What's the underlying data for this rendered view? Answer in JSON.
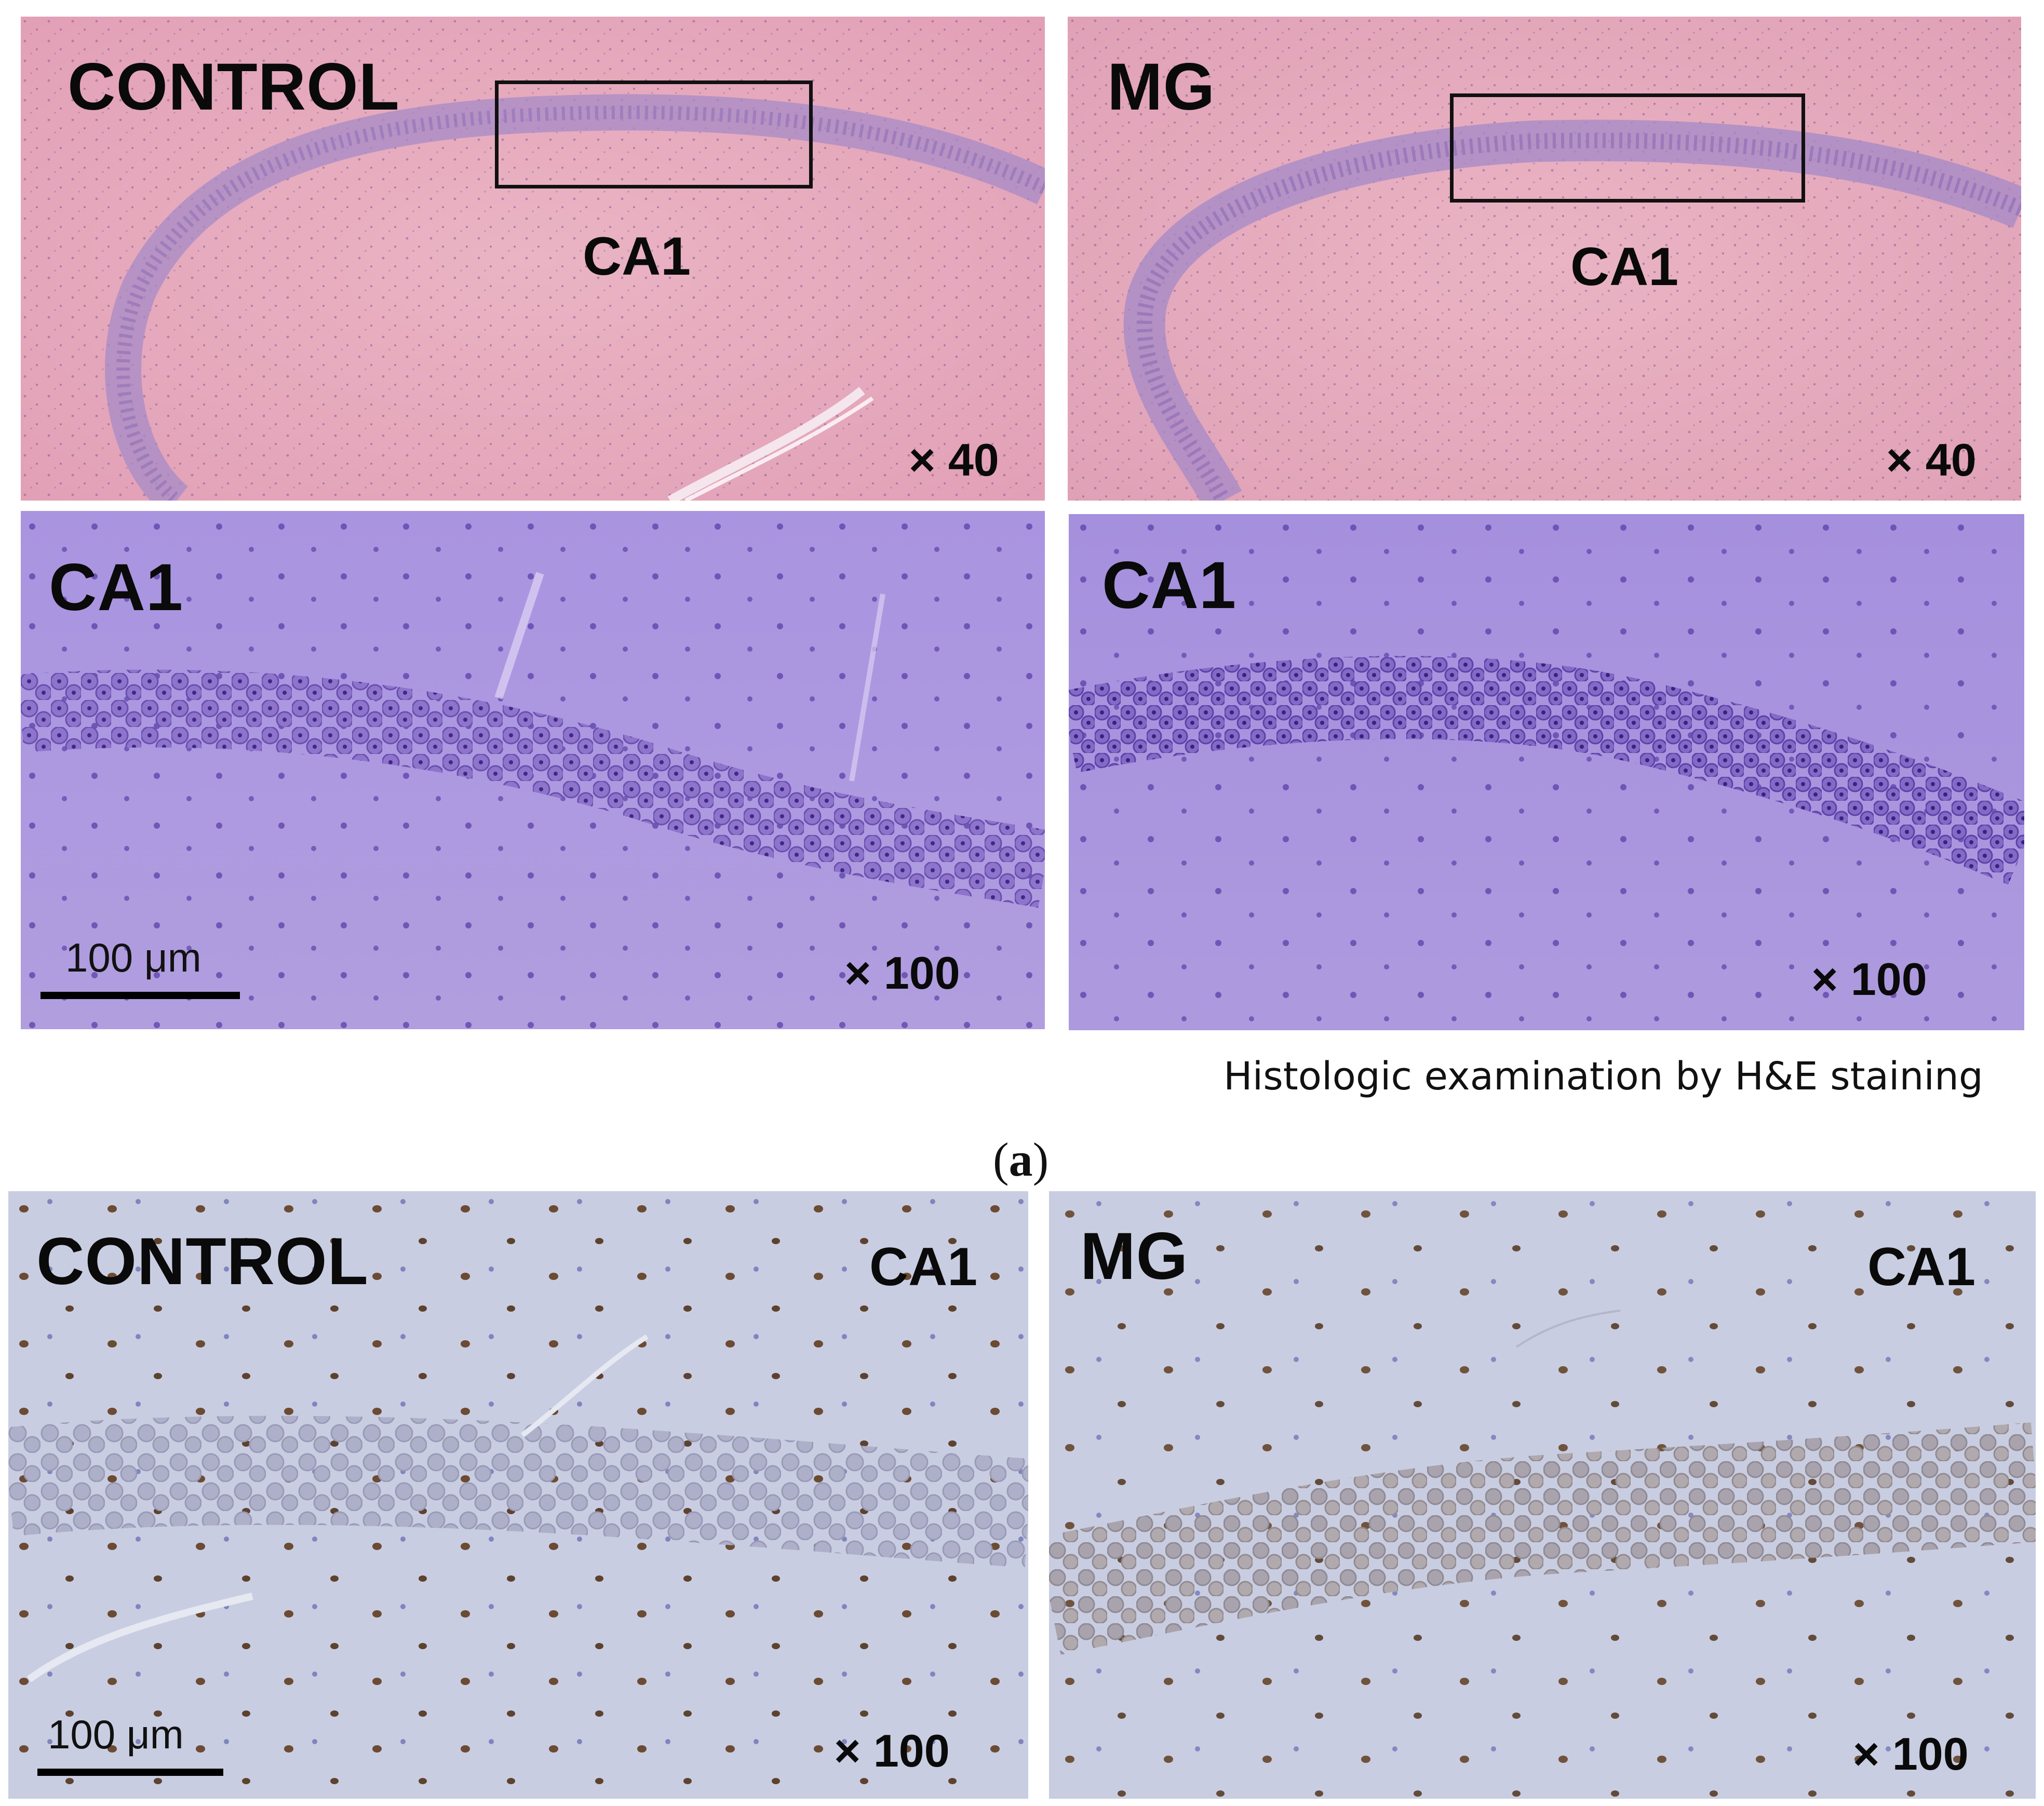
{
  "figure": {
    "subfigure_label_open": "(",
    "subfigure_letter": "a",
    "subfigure_label_close": ")",
    "he_caption": "Histologic examination by H&E staining"
  },
  "panels": {
    "he_control_low": {
      "group": "CONTROL",
      "region": "CA1",
      "magnification": "× 40"
    },
    "he_mg_low": {
      "group": "MG",
      "region": "CA1",
      "magnification": "× 40"
    },
    "he_control_high": {
      "region": "CA1",
      "magnification": "× 100",
      "scale_bar": "100 μm"
    },
    "he_mg_high": {
      "region": "CA1",
      "magnification": "× 100"
    },
    "ihc_control": {
      "group": "CONTROL",
      "region": "CA1",
      "magnification": "× 100",
      "scale_bar": "100 μm"
    },
    "ihc_mg": {
      "group": "MG",
      "region": "CA1",
      "magnification": "× 100"
    }
  },
  "colors": {
    "he_low_background": "#e8a9bd",
    "he_high_background": "#ab97df",
    "ihc_background": "#c9cde1",
    "nuclei_purple": "#5a3fa8",
    "dab_brown": "#5a3414"
  }
}
